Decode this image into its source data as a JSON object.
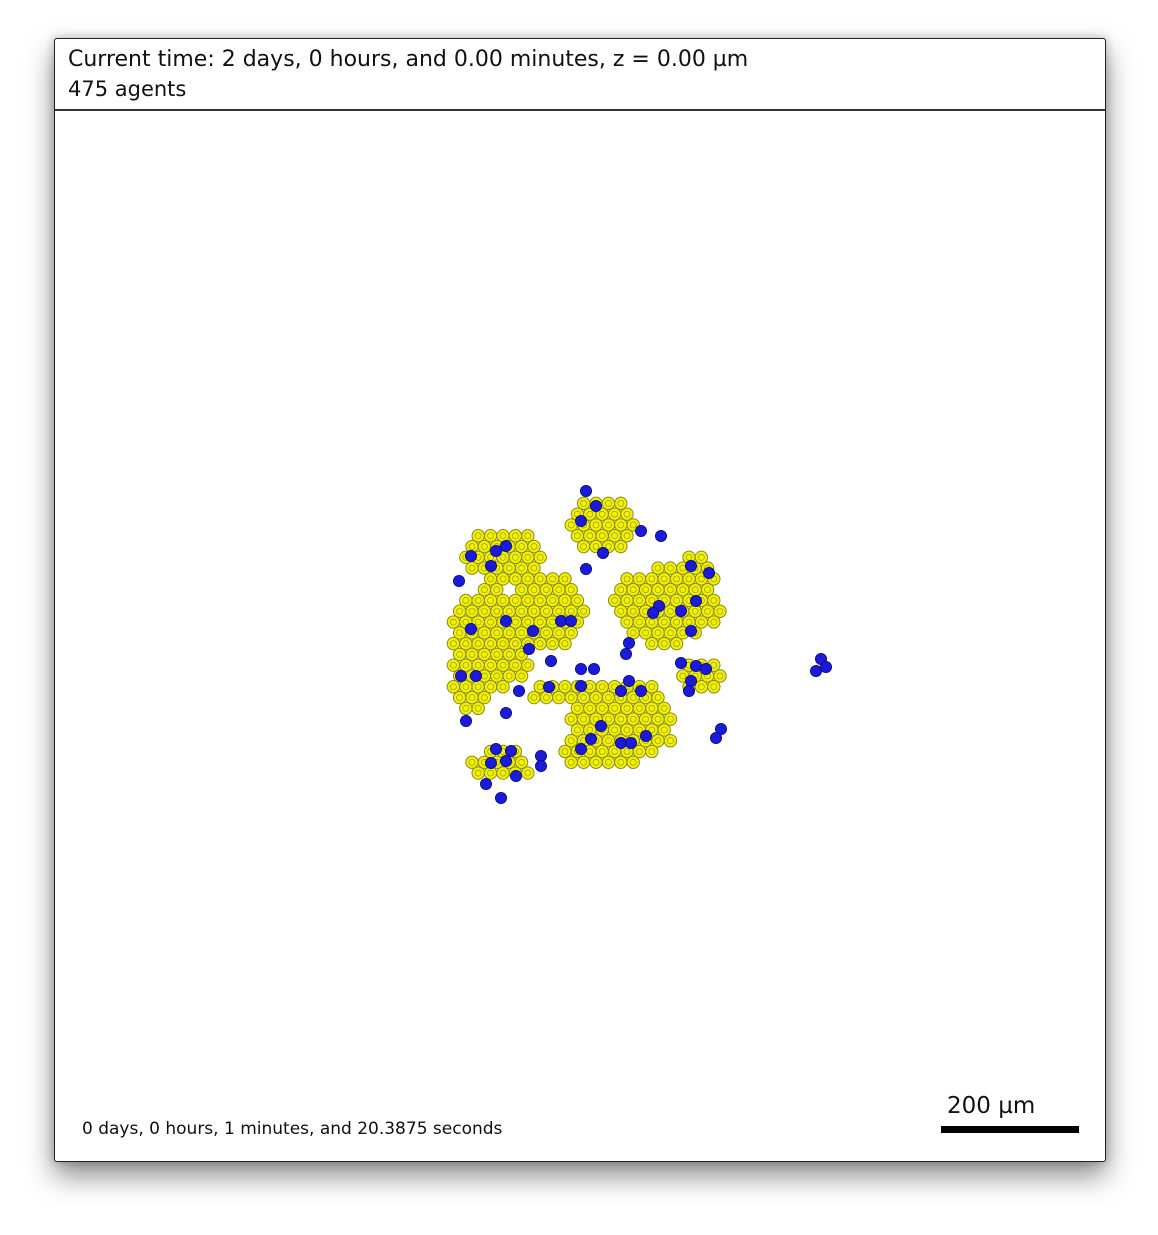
{
  "header": {
    "time_text": "Current time: 2 days, 0 hours, and 0.00 minutes, z = 0.00 µm",
    "agents_text": "475 agents"
  },
  "footer": {
    "elapsed_text": "0 days, 0 hours, 1 minutes, and 20.3875 seconds",
    "scale_label": "200 µm"
  },
  "colors": {
    "yellow_cell_fill": "#f2f200",
    "yellow_cell_stroke": "#8a8a1a",
    "blue_cell_fill": "#1a1ad8",
    "blue_cell_stroke": "#0a0a80",
    "background": "#ffffff"
  }
}
